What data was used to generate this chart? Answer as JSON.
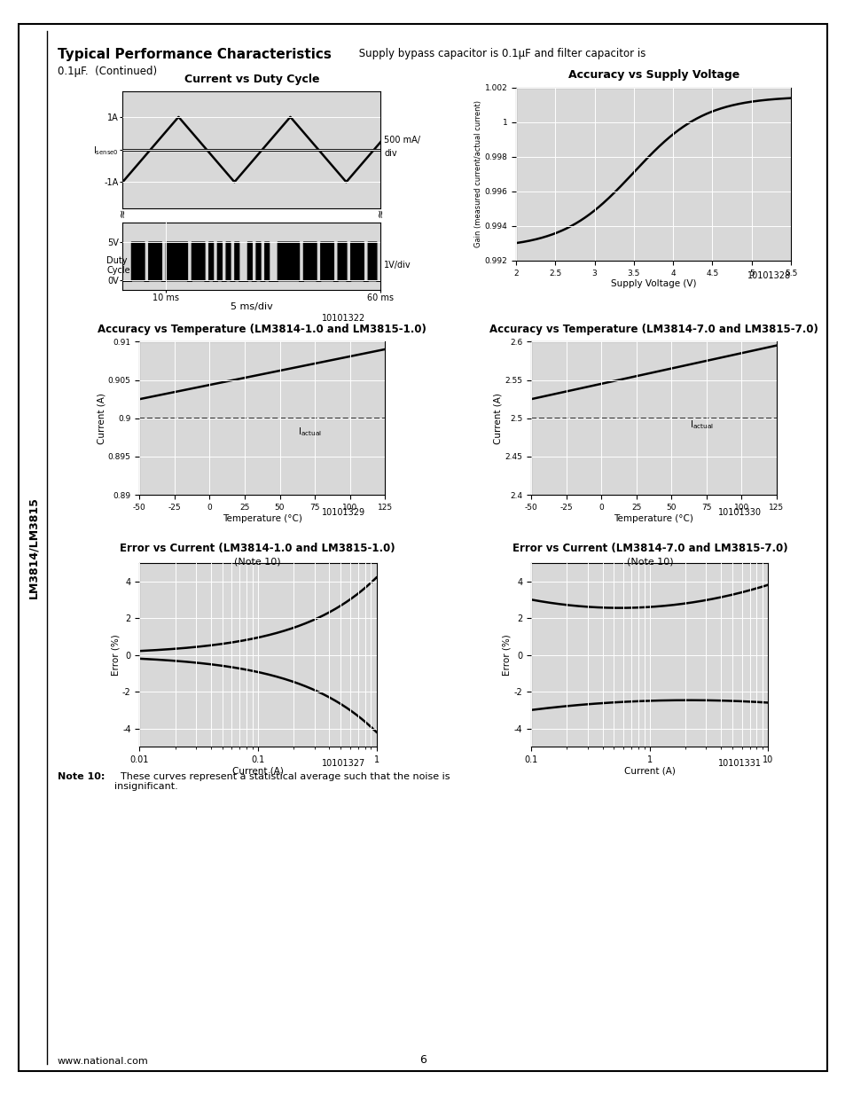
{
  "title_bold": "Typical Performance Characteristics",
  "title_normal": " Supply bypass capacitor is 0.1μF and filter capacitor is",
  "title_line2": "0.1μF.  (Continued)",
  "side_label": "LM3814/LM3815",
  "chart1_title": "Current vs Duty Cycle",
  "chart2_title": "Accuracy vs Supply Voltage",
  "chart3_title": "Accuracy vs Temperature (LM3814-1.0 and LM3815-1.0)",
  "chart4_title": "Accuracy vs Temperature (LM3814-7.0 and LM3815-7.0)",
  "chart5_title": "Error vs Current (LM3814-1.0 and LM3815-1.0)",
  "chart5_subtitle": "(Note 10)",
  "chart6_title": "Error vs Current (LM3814-7.0 and LM3815-7.0)",
  "chart6_subtitle": "(Note 10)",
  "note_bold": "Note 10:",
  "note_normal": "  These curves represent a statistical average such that the noise is\ninsignificant.",
  "footer_left": "www.national.com",
  "footer_center": "6",
  "fig1_num": "10101322",
  "fig2_num": "10101328",
  "fig3_num": "10101329",
  "fig4_num": "10101330",
  "fig5_num": "10101327",
  "fig6_num": "10101331",
  "grid_bg": "#d8d8d8",
  "grid_line_color": "#ffffff"
}
